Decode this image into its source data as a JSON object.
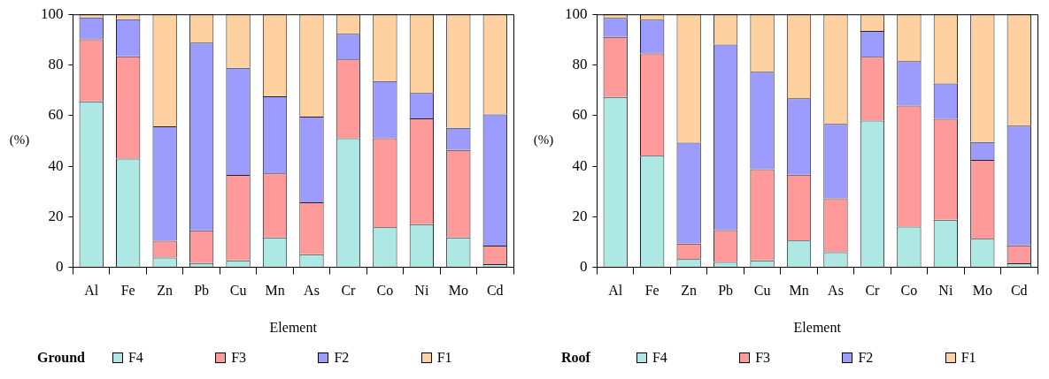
{
  "chart_data": [
    {
      "type": "bar",
      "stacked": true,
      "xlabel": "Element",
      "ylabel": "(%)",
      "legend_title": "Ground",
      "legend": "bottom",
      "grid": false,
      "categories": [
        "Al",
        "Fe",
        "Zn",
        "Pb",
        "Cu",
        "Mn",
        "As",
        "Cr",
        "Co",
        "Ni",
        "Mo",
        "Cd"
      ],
      "ylim": [
        0,
        100
      ],
      "yticks": [
        0,
        20,
        40,
        60,
        80,
        100
      ],
      "series": [
        {
          "name": "F4",
          "color": "#aee8e4",
          "values": [
            65.6,
            43.0,
            3.9,
            1.7,
            2.7,
            11.8,
            5.2,
            51.0,
            15.8,
            17.1,
            11.8,
            1.3
          ]
        },
        {
          "name": "F3",
          "color": "#ff9a9a",
          "values": [
            24.5,
            40.4,
            6.6,
            12.9,
            33.8,
            25.3,
            20.5,
            31.2,
            35.2,
            41.8,
            34.6,
            7.3
          ]
        },
        {
          "name": "F2",
          "color": "#9c9cff",
          "values": [
            8.7,
            14.7,
            45.2,
            74.2,
            42.4,
            30.5,
            33.9,
            10.1,
            22.6,
            10.0,
            8.7,
            51.8
          ]
        },
        {
          "name": "F1",
          "color": "#ffd0a0",
          "values": [
            1.2,
            1.9,
            44.3,
            11.2,
            21.1,
            32.4,
            40.4,
            7.7,
            26.4,
            31.1,
            44.9,
            39.6
          ]
        }
      ]
    },
    {
      "type": "bar",
      "stacked": true,
      "xlabel": "Element",
      "ylabel": "(%)",
      "legend_title": "Roof",
      "legend": "bottom",
      "grid": false,
      "categories": [
        "Al",
        "Fe",
        "Zn",
        "Pb",
        "Cu",
        "Mn",
        "As",
        "Cr",
        "Co",
        "Ni",
        "Mo",
        "Cd"
      ],
      "ylim": [
        0,
        100
      ],
      "yticks": [
        0,
        20,
        40,
        60,
        80,
        100
      ],
      "series": [
        {
          "name": "F4",
          "color": "#aee8e4",
          "values": [
            67.3,
            44.1,
            3.3,
            2.1,
            2.7,
            10.6,
            6.0,
            58.0,
            16.1,
            18.8,
            11.3,
            1.6
          ]
        },
        {
          "name": "F3",
          "color": "#ff9a9a",
          "values": [
            23.8,
            40.4,
            6.1,
            12.6,
            36.1,
            26.0,
            21.3,
            25.2,
            47.8,
            39.9,
            31.2,
            7.1
          ]
        },
        {
          "name": "F2",
          "color": "#9c9cff",
          "values": [
            7.5,
            13.4,
            39.9,
            73.3,
            38.5,
            30.2,
            29.4,
            10.2,
            17.6,
            14.0,
            7.0,
            47.3
          ]
        },
        {
          "name": "F1",
          "color": "#ffd0a0",
          "values": [
            1.4,
            2.1,
            50.7,
            12.0,
            22.7,
            33.2,
            43.3,
            6.6,
            18.5,
            27.3,
            50.5,
            44.0
          ]
        }
      ]
    }
  ]
}
